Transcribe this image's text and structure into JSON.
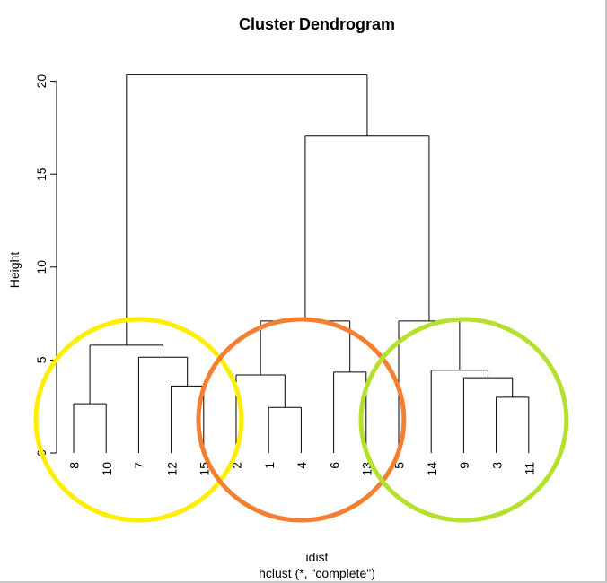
{
  "chart_data": {
    "type": "dendrogram",
    "title": "Cluster Dendrogram",
    "ylabel": "Height",
    "xlabel": "idist",
    "sub": "hclust (*, \"complete\")",
    "ylim": [
      0,
      21
    ],
    "yticks": [
      0,
      5,
      10,
      15,
      20
    ],
    "leaves": [
      "8",
      "10",
      "7",
      "12",
      "15",
      "2",
      "1",
      "4",
      "6",
      "13",
      "5",
      "14",
      "9",
      "3",
      "11"
    ],
    "merges": [
      {
        "children": [
          "8",
          "10"
        ],
        "height": 2.65
      },
      {
        "children": [
          "12",
          "15"
        ],
        "height": 3.6
      },
      {
        "children": [
          "7",
          [
            "12",
            "15"
          ]
        ],
        "height": 5.15
      },
      {
        "children": [
          [
            "8",
            "10"
          ],
          [
            "7",
            "12",
            "15"
          ]
        ],
        "height": 5.8
      },
      {
        "children": [
          "1",
          "4"
        ],
        "height": 2.45
      },
      {
        "children": [
          "2",
          [
            "1",
            "4"
          ]
        ],
        "height": 4.2
      },
      {
        "children": [
          "6",
          "13"
        ],
        "height": 4.35
      },
      {
        "children": [
          [
            "2",
            "1",
            "4"
          ],
          [
            "6",
            "13"
          ]
        ],
        "height": 7.1
      },
      {
        "children": [
          "3",
          "11"
        ],
        "height": 3.0
      },
      {
        "children": [
          "9",
          [
            "3",
            "11"
          ]
        ],
        "height": 4.05
      },
      {
        "children": [
          "14",
          [
            "9",
            "3",
            "11"
          ]
        ],
        "height": 4.45
      },
      {
        "children": [
          "5",
          [
            "14",
            "9",
            "3",
            "11"
          ]
        ],
        "height": 7.1
      },
      {
        "children": [
          [
            "2",
            "1",
            "4",
            "6",
            "13"
          ],
          [
            "5",
            "14",
            "9",
            "3",
            "11"
          ]
        ],
        "height": 17.05
      },
      {
        "children": [
          [
            "8",
            "10",
            "7",
            "12",
            "15"
          ],
          [
            "2",
            "1",
            "4",
            "6",
            "13",
            "5",
            "14",
            "9",
            "3",
            "11"
          ]
        ],
        "height": 20.35
      }
    ],
    "cluster_highlights": [
      {
        "leaves": [
          "8",
          "10",
          "7",
          "12",
          "15"
        ],
        "color": "#ffee00"
      },
      {
        "leaves": [
          "2",
          "1",
          "4",
          "6",
          "13"
        ],
        "color": "#f47f30"
      },
      {
        "leaves": [
          "5",
          "14",
          "9",
          "3",
          "11"
        ],
        "color": "#b5e02e"
      }
    ],
    "grid": false,
    "legend": "none"
  }
}
